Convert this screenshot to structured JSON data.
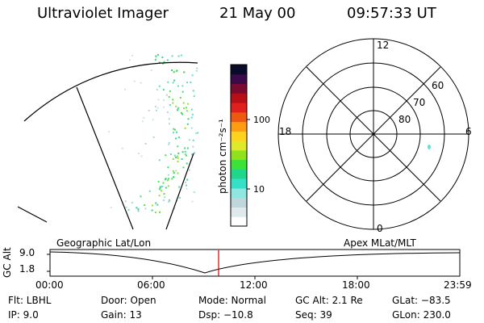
{
  "header": {
    "instrument": "Ultraviolet Imager",
    "date": "21 May 00",
    "time": "09:57:33 UT"
  },
  "colorbar": {
    "unit_label": "photon cm⁻²s⁻¹",
    "tick_100": "100",
    "tick_10": "10",
    "colors": [
      "#ffffff",
      "#dfe9ee",
      "#bfd6dd",
      "#8fe5e0",
      "#36e0c8",
      "#20d68c",
      "#3ae23a",
      "#8ee31e",
      "#dfe92a",
      "#ffd21e",
      "#ff9c10",
      "#f05a10",
      "#e0201c",
      "#b80e16",
      "#7a0a30",
      "#3a0a4a",
      "#0a0a2a"
    ]
  },
  "polar": {
    "mlt_12": "12",
    "mlt_18": "18",
    "mlt_6": "6",
    "mlt_0": "0",
    "lat_60": "60",
    "lat_70": "70",
    "lat_80": "80"
  },
  "timeline": {
    "ylabel": "GC Alt",
    "ytick_top": "9.0",
    "ytick_bottom": "1.8",
    "left_label": "Geographic Lat/Lon",
    "right_label": "Apex MLat/MLT",
    "ticks": [
      "00:00",
      "06:00",
      "12:00",
      "18:00",
      "23:59"
    ],
    "marker_color": "#cc0000"
  },
  "info": {
    "flt": "Flt: LBHL",
    "ip": "IP:  9.0",
    "door": "Door: Open",
    "gain": "Gain: 13",
    "mode": "Mode: Normal",
    "dsp": "Dsp:  −10.8",
    "gcalt": "GC Alt: 2.1 Re",
    "seq": "Seq: 39",
    "glat": "GLat: −83.5",
    "glon": "GLon: 230.0"
  }
}
